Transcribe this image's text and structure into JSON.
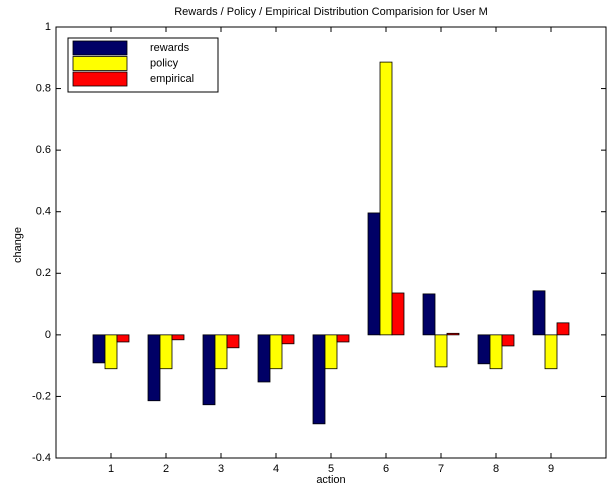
{
  "chart_data": {
    "type": "bar",
    "title": "Rewards / Policy / Empirical Distribution Comparision for User M",
    "x_label": "action",
    "y_label": "change",
    "x": [
      1,
      2,
      3,
      4,
      5,
      6,
      7,
      8,
      9
    ],
    "series": [
      {
        "name": "rewards",
        "color": "#000066",
        "values": [
          -0.091,
          -0.214,
          -0.227,
          -0.153,
          -0.289,
          0.396,
          0.133,
          -0.094,
          0.143
        ]
      },
      {
        "name": "policy",
        "color": "#ffff00",
        "values": [
          -0.11,
          -0.11,
          -0.11,
          -0.11,
          -0.11,
          0.886,
          -0.104,
          -0.11,
          -0.11
        ]
      },
      {
        "name": "empirical",
        "color": "#ff0000",
        "values": [
          -0.023,
          -0.016,
          -0.042,
          -0.029,
          -0.023,
          0.136,
          0.005,
          -0.036,
          0.039
        ]
      }
    ],
    "xlim": [
      0,
      10
    ],
    "xticks": [
      1,
      2,
      3,
      4,
      5,
      6,
      7,
      8,
      9
    ],
    "ylim": [
      -0.4,
      1
    ],
    "yticks": [
      -0.4,
      -0.2,
      0,
      0.2,
      0.4,
      0.6,
      0.8,
      1
    ],
    "legend": "upper left"
  }
}
